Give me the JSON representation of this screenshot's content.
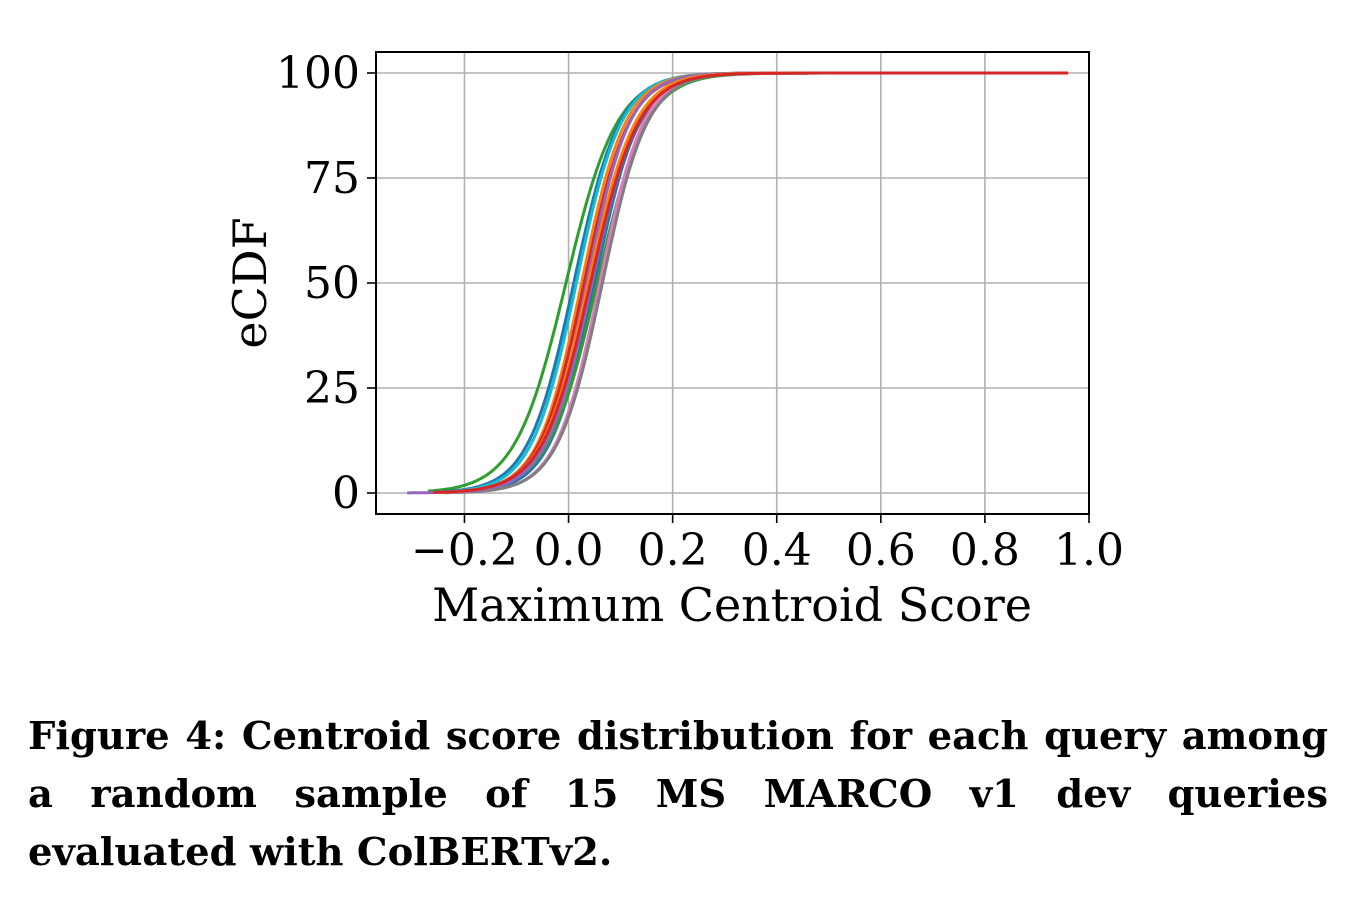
{
  "chart_data": {
    "type": "line",
    "xlabel": "Maximum Centroid Score",
    "ylabel": "eCDF",
    "xlim": [
      -0.37,
      1.0
    ],
    "ylim": [
      -5,
      105
    ],
    "x_ticks": [
      -0.2,
      0.0,
      0.2,
      0.4,
      0.6,
      0.8,
      1.0
    ],
    "x_tick_labels": [
      "−0.2",
      "0.0",
      "0.2",
      "0.4",
      "0.6",
      "0.8",
      "1.0"
    ],
    "y_ticks": [
      0,
      25,
      50,
      75,
      100
    ],
    "y_tick_labels": [
      "0",
      "25",
      "50",
      "75",
      "100"
    ],
    "grid": true,
    "legend": "none",
    "series": [
      {
        "color": "#2ca02c",
        "median": -0.005,
        "scale": 0.049,
        "x_min": -0.27,
        "x_max": 0.9
      },
      {
        "color": "#1f77b4",
        "median": 0.01,
        "scale": 0.044,
        "x_min": -0.26,
        "x_max": 0.9
      },
      {
        "color": "#17becf",
        "median": 0.015,
        "scale": 0.043,
        "x_min": -0.26,
        "x_max": 0.9
      },
      {
        "color": "#ff7f0e",
        "median": 0.025,
        "scale": 0.042,
        "x_min": -0.25,
        "x_max": 0.9
      },
      {
        "color": "#d62728",
        "median": 0.03,
        "scale": 0.043,
        "x_min": -0.25,
        "x_max": 0.9
      },
      {
        "color": "#9467bd",
        "median": 0.035,
        "scale": 0.041,
        "x_min": -0.24,
        "x_max": 0.9
      },
      {
        "color": "#bcbd22",
        "median": 0.04,
        "scale": 0.044,
        "x_min": -0.25,
        "x_max": 0.9
      },
      {
        "color": "#8c564b",
        "median": 0.045,
        "scale": 0.046,
        "x_min": -0.24,
        "x_max": 0.9
      },
      {
        "color": "#1f77b4",
        "median": 0.05,
        "scale": 0.043,
        "x_min": -0.24,
        "x_max": 0.9
      },
      {
        "color": "#2ca02c",
        "median": 0.055,
        "scale": 0.047,
        "x_min": -0.25,
        "x_max": 0.9
      },
      {
        "color": "#e377c2",
        "median": 0.06,
        "scale": 0.042,
        "x_min": -0.24,
        "x_max": 0.9
      },
      {
        "color": "#7f7f7f",
        "median": 0.065,
        "scale": 0.043,
        "x_min": -0.24,
        "x_max": 0.9
      },
      {
        "color": "#9467bd",
        "median": 0.045,
        "scale": 0.044,
        "x_min": -0.31,
        "x_max": 0.9
      },
      {
        "color": "#ff7f0e",
        "median": 0.038,
        "scale": 0.045,
        "x_min": -0.25,
        "x_max": 0.9
      },
      {
        "color": "#d62728",
        "median": 0.042,
        "scale": 0.046,
        "x_min": -0.26,
        "x_max": 0.96
      }
    ]
  },
  "caption": {
    "text": "Figure 4: Centroid score distribution for each query among a random sample of 15 MS MARCO v1 dev queries evaluated with ColBERTv2."
  }
}
